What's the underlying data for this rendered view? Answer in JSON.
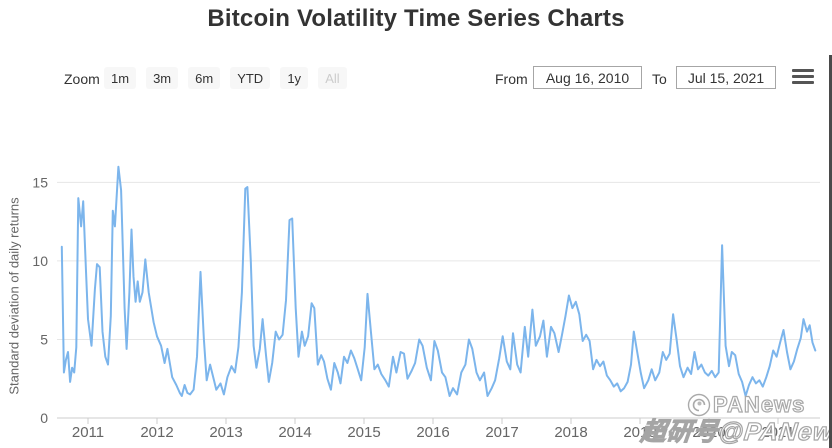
{
  "title": "Bitcoin Volatility Time Series Charts",
  "range_selector": {
    "zoom_label": "Zoom",
    "buttons": [
      "1m",
      "3m",
      "6m",
      "YTD",
      "1y",
      "All"
    ],
    "disabled_button": "All",
    "from_label": "From",
    "from_value": "Aug 16, 2010",
    "to_label": "To",
    "to_value": "Jul 15, 2021"
  },
  "icons": {
    "export_menu": "hamburger-icon",
    "watermark_logo": "panews-swirl-logo"
  },
  "watermark": {
    "brand": "PANews",
    "byline": "超研号@PANews"
  },
  "chart_data": {
    "type": "line",
    "title": "",
    "xlabel": "",
    "ylabel": "Standard deviation of daily returns",
    "x_encoding": "decimal_year",
    "xticks": [
      2011,
      2012,
      2013,
      2014,
      2015,
      2016,
      2017,
      2018,
      2019,
      2020,
      2021
    ],
    "xlim": [
      2010.6,
      2021.6
    ],
    "yticks": [
      0,
      5,
      10,
      15
    ],
    "ylim": [
      0,
      17.7
    ],
    "grid": true,
    "legend": "none",
    "colors": {
      "line": "#7cb5ec",
      "grid": "#e6e6e6",
      "axis": "#cccccc",
      "tick_label": "#666666"
    },
    "series": [
      {
        "name": "Bitcoin volatility (std dev of daily returns)",
        "color": "#7cb5ec",
        "points": [
          [
            2010.62,
            10.9
          ],
          [
            2010.65,
            2.9
          ],
          [
            2010.68,
            3.7
          ],
          [
            2010.71,
            4.2
          ],
          [
            2010.74,
            2.3
          ],
          [
            2010.77,
            3.2
          ],
          [
            2010.8,
            2.9
          ],
          [
            2010.83,
            4.5
          ],
          [
            2010.86,
            14.0
          ],
          [
            2010.9,
            12.2
          ],
          [
            2010.93,
            13.8
          ],
          [
            2010.97,
            9.5
          ],
          [
            2011.0,
            6.3
          ],
          [
            2011.05,
            4.6
          ],
          [
            2011.1,
            8.2
          ],
          [
            2011.13,
            9.8
          ],
          [
            2011.17,
            9.6
          ],
          [
            2011.21,
            5.5
          ],
          [
            2011.25,
            3.9
          ],
          [
            2011.29,
            3.4
          ],
          [
            2011.33,
            6.5
          ],
          [
            2011.36,
            13.2
          ],
          [
            2011.39,
            12.2
          ],
          [
            2011.44,
            16.0
          ],
          [
            2011.48,
            14.5
          ],
          [
            2011.53,
            7.0
          ],
          [
            2011.56,
            4.4
          ],
          [
            2011.6,
            8.0
          ],
          [
            2011.63,
            12.0
          ],
          [
            2011.66,
            9.0
          ],
          [
            2011.69,
            7.4
          ],
          [
            2011.72,
            8.7
          ],
          [
            2011.75,
            7.4
          ],
          [
            2011.79,
            8.0
          ],
          [
            2011.83,
            10.1
          ],
          [
            2011.88,
            8.0
          ],
          [
            2011.95,
            6.1
          ],
          [
            2012.0,
            5.2
          ],
          [
            2012.06,
            4.6
          ],
          [
            2012.11,
            3.5
          ],
          [
            2012.15,
            4.4
          ],
          [
            2012.22,
            2.6
          ],
          [
            2012.28,
            2.1
          ],
          [
            2012.33,
            1.6
          ],
          [
            2012.36,
            1.4
          ],
          [
            2012.4,
            2.1
          ],
          [
            2012.44,
            1.6
          ],
          [
            2012.48,
            1.5
          ],
          [
            2012.53,
            1.8
          ],
          [
            2012.58,
            3.9
          ],
          [
            2012.63,
            9.3
          ],
          [
            2012.68,
            5.0
          ],
          [
            2012.72,
            2.4
          ],
          [
            2012.77,
            3.4
          ],
          [
            2012.82,
            2.5
          ],
          [
            2012.86,
            1.8
          ],
          [
            2012.92,
            2.2
          ],
          [
            2012.97,
            1.5
          ],
          [
            2013.02,
            2.6
          ],
          [
            2013.08,
            3.3
          ],
          [
            2013.13,
            2.9
          ],
          [
            2013.18,
            4.5
          ],
          [
            2013.23,
            8.0
          ],
          [
            2013.28,
            14.6
          ],
          [
            2013.31,
            14.7
          ],
          [
            2013.36,
            10.0
          ],
          [
            2013.4,
            4.6
          ],
          [
            2013.44,
            3.2
          ],
          [
            2013.49,
            4.4
          ],
          [
            2013.53,
            6.3
          ],
          [
            2013.58,
            4.0
          ],
          [
            2013.62,
            2.3
          ],
          [
            2013.67,
            3.5
          ],
          [
            2013.72,
            5.5
          ],
          [
            2013.77,
            5.0
          ],
          [
            2013.82,
            5.3
          ],
          [
            2013.87,
            7.5
          ],
          [
            2013.92,
            12.6
          ],
          [
            2013.96,
            12.7
          ],
          [
            2014.01,
            7.0
          ],
          [
            2014.05,
            3.9
          ],
          [
            2014.1,
            5.5
          ],
          [
            2014.14,
            4.6
          ],
          [
            2014.19,
            5.2
          ],
          [
            2014.24,
            7.3
          ],
          [
            2014.28,
            7.0
          ],
          [
            2014.33,
            3.4
          ],
          [
            2014.38,
            4.0
          ],
          [
            2014.42,
            3.6
          ],
          [
            2014.47,
            2.5
          ],
          [
            2014.52,
            1.8
          ],
          [
            2014.57,
            3.5
          ],
          [
            2014.62,
            2.9
          ],
          [
            2014.66,
            2.2
          ],
          [
            2014.71,
            3.9
          ],
          [
            2014.76,
            3.5
          ],
          [
            2014.81,
            4.3
          ],
          [
            2014.86,
            3.8
          ],
          [
            2014.91,
            3.1
          ],
          [
            2014.96,
            2.4
          ],
          [
            2015.01,
            4.5
          ],
          [
            2015.05,
            7.9
          ],
          [
            2015.1,
            5.5
          ],
          [
            2015.15,
            3.1
          ],
          [
            2015.2,
            3.4
          ],
          [
            2015.25,
            2.8
          ],
          [
            2015.31,
            2.4
          ],
          [
            2015.36,
            2.0
          ],
          [
            2015.42,
            3.9
          ],
          [
            2015.47,
            2.9
          ],
          [
            2015.53,
            4.2
          ],
          [
            2015.58,
            4.1
          ],
          [
            2015.63,
            2.5
          ],
          [
            2015.69,
            3.0
          ],
          [
            2015.74,
            3.5
          ],
          [
            2015.8,
            5.0
          ],
          [
            2015.85,
            4.6
          ],
          [
            2015.91,
            3.2
          ],
          [
            2015.97,
            2.4
          ],
          [
            2016.02,
            4.9
          ],
          [
            2016.07,
            4.3
          ],
          [
            2016.13,
            2.9
          ],
          [
            2016.18,
            2.6
          ],
          [
            2016.24,
            1.4
          ],
          [
            2016.29,
            1.9
          ],
          [
            2016.35,
            1.5
          ],
          [
            2016.41,
            2.9
          ],
          [
            2016.47,
            3.4
          ],
          [
            2016.52,
            5.0
          ],
          [
            2016.57,
            4.4
          ],
          [
            2016.63,
            2.9
          ],
          [
            2016.68,
            2.4
          ],
          [
            2016.74,
            2.9
          ],
          [
            2016.79,
            1.4
          ],
          [
            2016.85,
            1.9
          ],
          [
            2016.9,
            2.4
          ],
          [
            2016.96,
            3.8
          ],
          [
            2017.01,
            5.2
          ],
          [
            2017.07,
            3.6
          ],
          [
            2017.12,
            3.1
          ],
          [
            2017.16,
            5.4
          ],
          [
            2017.22,
            3.4
          ],
          [
            2017.27,
            2.9
          ],
          [
            2017.33,
            5.8
          ],
          [
            2017.38,
            3.9
          ],
          [
            2017.44,
            6.9
          ],
          [
            2017.49,
            4.6
          ],
          [
            2017.55,
            5.2
          ],
          [
            2017.6,
            6.2
          ],
          [
            2017.65,
            3.9
          ],
          [
            2017.71,
            5.8
          ],
          [
            2017.76,
            5.4
          ],
          [
            2017.82,
            4.2
          ],
          [
            2017.87,
            5.3
          ],
          [
            2017.92,
            6.5
          ],
          [
            2017.97,
            7.8
          ],
          [
            2018.02,
            7.0
          ],
          [
            2018.07,
            7.4
          ],
          [
            2018.12,
            6.6
          ],
          [
            2018.17,
            4.9
          ],
          [
            2018.22,
            5.3
          ],
          [
            2018.27,
            4.9
          ],
          [
            2018.32,
            3.1
          ],
          [
            2018.37,
            3.7
          ],
          [
            2018.42,
            3.3
          ],
          [
            2018.47,
            3.6
          ],
          [
            2018.52,
            2.7
          ],
          [
            2018.57,
            2.4
          ],
          [
            2018.62,
            2.0
          ],
          [
            2018.67,
            2.2
          ],
          [
            2018.72,
            1.7
          ],
          [
            2018.77,
            1.9
          ],
          [
            2018.82,
            2.3
          ],
          [
            2018.87,
            3.4
          ],
          [
            2018.91,
            5.5
          ],
          [
            2018.96,
            4.2
          ],
          [
            2019.01,
            2.9
          ],
          [
            2019.06,
            1.9
          ],
          [
            2019.12,
            2.4
          ],
          [
            2019.17,
            3.1
          ],
          [
            2019.22,
            2.4
          ],
          [
            2019.28,
            2.9
          ],
          [
            2019.33,
            4.2
          ],
          [
            2019.38,
            3.7
          ],
          [
            2019.43,
            4.1
          ],
          [
            2019.48,
            6.6
          ],
          [
            2019.53,
            5.0
          ],
          [
            2019.58,
            3.3
          ],
          [
            2019.63,
            2.6
          ],
          [
            2019.69,
            3.2
          ],
          [
            2019.74,
            2.8
          ],
          [
            2019.79,
            4.2
          ],
          [
            2019.84,
            3.1
          ],
          [
            2019.89,
            3.4
          ],
          [
            2019.94,
            2.9
          ],
          [
            2019.99,
            2.7
          ],
          [
            2020.04,
            3.0
          ],
          [
            2020.09,
            2.6
          ],
          [
            2020.14,
            2.9
          ],
          [
            2020.19,
            11.0
          ],
          [
            2020.24,
            4.6
          ],
          [
            2020.29,
            3.3
          ],
          [
            2020.33,
            4.2
          ],
          [
            2020.38,
            4.0
          ],
          [
            2020.43,
            2.8
          ],
          [
            2020.48,
            2.3
          ],
          [
            2020.53,
            1.4
          ],
          [
            2020.58,
            2.1
          ],
          [
            2020.63,
            2.6
          ],
          [
            2020.68,
            2.2
          ],
          [
            2020.73,
            2.4
          ],
          [
            2020.78,
            2.0
          ],
          [
            2020.83,
            2.6
          ],
          [
            2020.88,
            3.3
          ],
          [
            2020.93,
            4.3
          ],
          [
            2020.98,
            3.9
          ],
          [
            2021.03,
            4.8
          ],
          [
            2021.08,
            5.6
          ],
          [
            2021.13,
            4.2
          ],
          [
            2021.18,
            3.1
          ],
          [
            2021.23,
            3.6
          ],
          [
            2021.28,
            4.4
          ],
          [
            2021.33,
            5.1
          ],
          [
            2021.37,
            6.3
          ],
          [
            2021.42,
            5.5
          ],
          [
            2021.46,
            5.9
          ],
          [
            2021.5,
            4.8
          ],
          [
            2021.54,
            4.3
          ]
        ]
      }
    ]
  }
}
